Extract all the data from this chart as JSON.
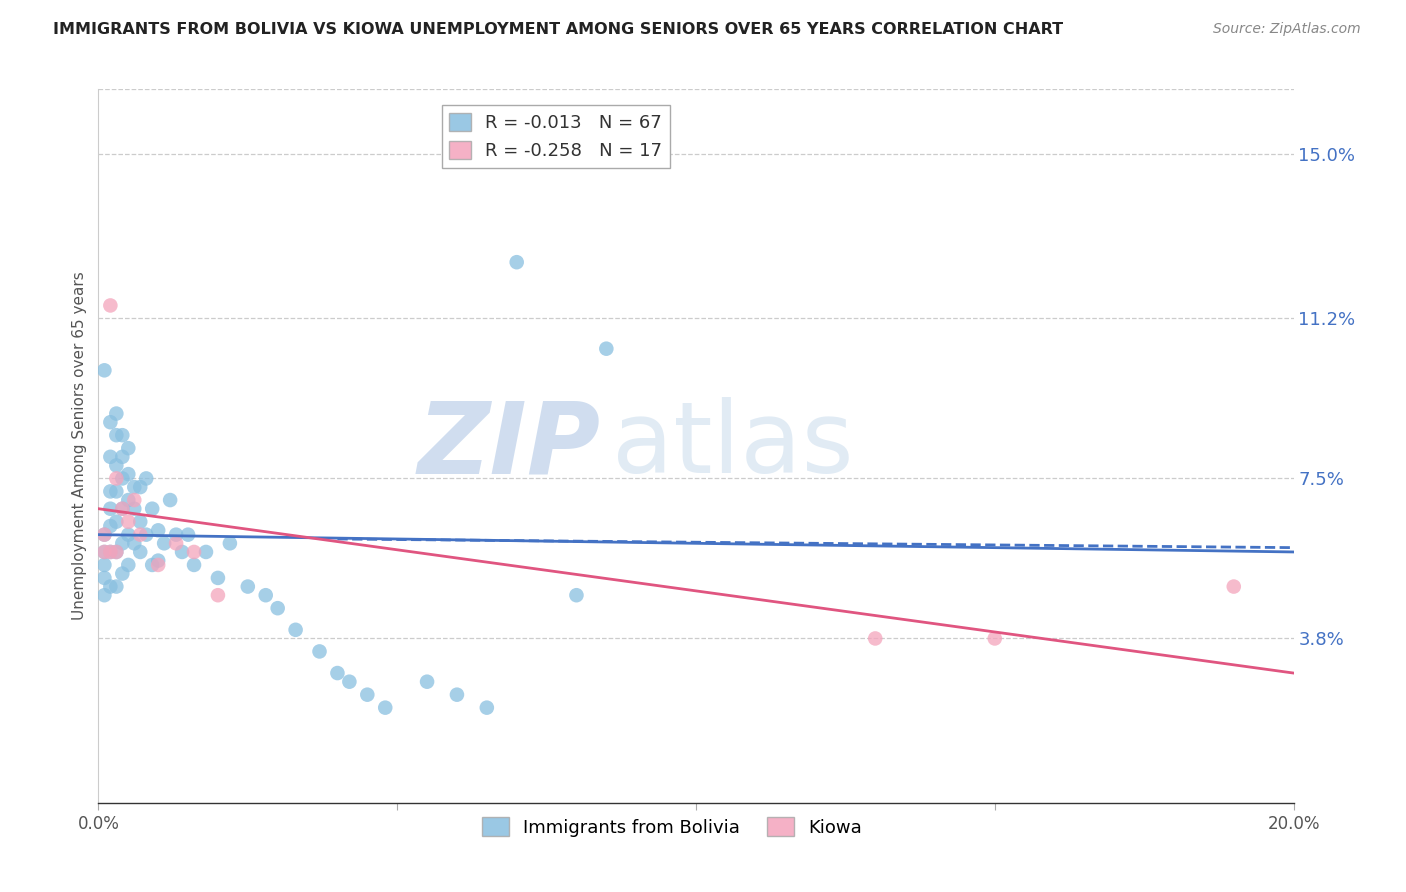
{
  "title": "IMMIGRANTS FROM BOLIVIA VS KIOWA UNEMPLOYMENT AMONG SENIORS OVER 65 YEARS CORRELATION CHART",
  "source": "Source: ZipAtlas.com",
  "ylabel": "Unemployment Among Seniors over 65 years",
  "right_yticks": [
    "15.0%",
    "11.2%",
    "7.5%",
    "3.8%"
  ],
  "right_ytick_vals": [
    0.15,
    0.112,
    0.075,
    0.038
  ],
  "xlim": [
    0.0,
    0.2
  ],
  "ylim": [
    0.0,
    0.165
  ],
  "legend1_label": "R = -0.013   N = 67",
  "legend2_label": "R = -0.258   N = 17",
  "blue_color": "#89bfe0",
  "pink_color": "#f4a4bc",
  "trend_blue": "#4472c4",
  "trend_pink": "#e05580",
  "watermark_zip": "ZIP",
  "watermark_atlas": "atlas",
  "bolivia_x": [
    0.001,
    0.001,
    0.001,
    0.001,
    0.001,
    0.001,
    0.002,
    0.002,
    0.002,
    0.002,
    0.002,
    0.002,
    0.002,
    0.003,
    0.003,
    0.003,
    0.003,
    0.003,
    0.003,
    0.003,
    0.004,
    0.004,
    0.004,
    0.004,
    0.004,
    0.004,
    0.005,
    0.005,
    0.005,
    0.005,
    0.005,
    0.006,
    0.006,
    0.006,
    0.007,
    0.007,
    0.007,
    0.008,
    0.008,
    0.009,
    0.009,
    0.01,
    0.01,
    0.011,
    0.012,
    0.013,
    0.014,
    0.015,
    0.016,
    0.018,
    0.02,
    0.022,
    0.025,
    0.028,
    0.03,
    0.033,
    0.037,
    0.04,
    0.042,
    0.045,
    0.048,
    0.055,
    0.06,
    0.065,
    0.07,
    0.08,
    0.085
  ],
  "bolivia_y": [
    0.1,
    0.062,
    0.058,
    0.055,
    0.052,
    0.048,
    0.088,
    0.08,
    0.072,
    0.068,
    0.064,
    0.058,
    0.05,
    0.09,
    0.085,
    0.078,
    0.072,
    0.065,
    0.058,
    0.05,
    0.085,
    0.08,
    0.075,
    0.068,
    0.06,
    0.053,
    0.082,
    0.076,
    0.07,
    0.062,
    0.055,
    0.073,
    0.068,
    0.06,
    0.073,
    0.065,
    0.058,
    0.075,
    0.062,
    0.068,
    0.055,
    0.063,
    0.056,
    0.06,
    0.07,
    0.062,
    0.058,
    0.062,
    0.055,
    0.058,
    0.052,
    0.06,
    0.05,
    0.048,
    0.045,
    0.04,
    0.035,
    0.03,
    0.028,
    0.025,
    0.022,
    0.028,
    0.025,
    0.022,
    0.125,
    0.048,
    0.105
  ],
  "kiowa_x": [
    0.001,
    0.001,
    0.002,
    0.002,
    0.003,
    0.003,
    0.004,
    0.005,
    0.006,
    0.007,
    0.01,
    0.013,
    0.016,
    0.02,
    0.13,
    0.15,
    0.19
  ],
  "kiowa_y": [
    0.062,
    0.058,
    0.115,
    0.058,
    0.075,
    0.058,
    0.068,
    0.065,
    0.07,
    0.062,
    0.055,
    0.06,
    0.058,
    0.048,
    0.038,
    0.038,
    0.05
  ],
  "bolivia_trend_x": [
    0.0,
    0.2
  ],
  "bolivia_trend_y": [
    0.062,
    0.058
  ],
  "kiowa_trend_x": [
    0.0,
    0.2
  ],
  "kiowa_trend_y": [
    0.068,
    0.03
  ]
}
